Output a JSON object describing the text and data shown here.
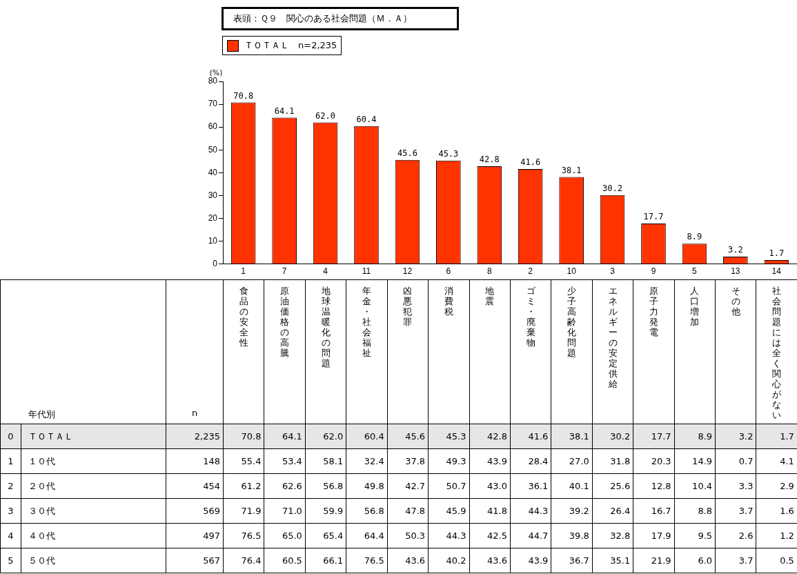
{
  "chart_data": [
    {
      "type": "bar",
      "title": "表頭：Ｑ９　関心のある社会問題（Ｍ．Ａ）",
      "ylabel": "(%)",
      "categories": [
        "1",
        "7",
        "4",
        "11",
        "12",
        "6",
        "8",
        "2",
        "10",
        "3",
        "9",
        "5",
        "13",
        "14"
      ],
      "series": [
        {
          "name": "ＴＯＴＡＬ　n=2,235",
          "color": "#ff3300",
          "values": [
            70.8,
            64.1,
            62.0,
            60.4,
            45.6,
            45.3,
            42.8,
            41.6,
            38.1,
            30.2,
            17.7,
            8.9,
            3.2,
            1.7
          ],
          "value_labels": [
            "70.8",
            "64.1",
            "62.0",
            "60.4",
            "45.6",
            "45.3",
            "42.8",
            "41.6",
            "38.1",
            "30.2",
            "17.7",
            "8.9",
            "3.2",
            "1.7"
          ]
        }
      ],
      "ylim": [
        0,
        80
      ],
      "yticks": [
        0,
        10,
        20,
        30,
        40,
        50,
        60,
        70,
        80
      ],
      "grid": false,
      "legend": "top left"
    },
    {
      "type": "other",
      "ylabel": "年代別",
      "categories": [
        "n",
        "食品の安全性",
        "原油価格の高騰",
        "地球温暖化の問題",
        "年金・社会福祉",
        "凶悪犯罪",
        "消費税",
        "地震",
        "ゴミ・廃棄物",
        "少子高齢化問題",
        "エネルギーの安定供給",
        "原子力発電",
        "人口増加",
        "その他",
        "社会問題には全く関心がない"
      ],
      "y_categories": [
        "ＴＯＴＡＬ",
        "１０代",
        "２０代",
        "３０代",
        "４０代",
        "５０代"
      ],
      "y2_categories": [
        "0",
        "1",
        "2",
        "3",
        "4",
        "5"
      ],
      "cell_labels": [
        [
          "2,235",
          "70.8",
          "64.1",
          "62.0",
          "60.4",
          "45.6",
          "45.3",
          "42.8",
          "41.6",
          "38.1",
          "30.2",
          "17.7",
          "8.9",
          "3.2",
          "1.7"
        ],
        [
          "148",
          "55.4",
          "53.4",
          "58.1",
          "32.4",
          "37.8",
          "49.3",
          "43.9",
          "28.4",
          "27.0",
          "31.8",
          "20.3",
          "14.9",
          "0.7",
          "4.1"
        ],
        [
          "454",
          "61.2",
          "62.6",
          "56.8",
          "49.8",
          "42.7",
          "50.7",
          "43.0",
          "36.1",
          "40.1",
          "25.6",
          "12.8",
          "10.4",
          "3.3",
          "2.9"
        ],
        [
          "569",
          "71.9",
          "71.0",
          "59.9",
          "56.8",
          "47.8",
          "45.9",
          "41.8",
          "44.3",
          "39.2",
          "26.4",
          "16.7",
          "8.8",
          "3.7",
          "1.6"
        ],
        [
          "497",
          "76.5",
          "65.0",
          "65.4",
          "64.4",
          "50.3",
          "44.3",
          "42.5",
          "44.7",
          "39.8",
          "32.8",
          "17.9",
          "9.5",
          "2.6",
          "1.2"
        ],
        [
          "567",
          "76.4",
          "60.5",
          "66.1",
          "76.5",
          "43.6",
          "40.2",
          "43.6",
          "43.9",
          "36.7",
          "35.1",
          "21.9",
          "6.0",
          "3.7",
          "0.5"
        ]
      ]
    }
  ]
}
